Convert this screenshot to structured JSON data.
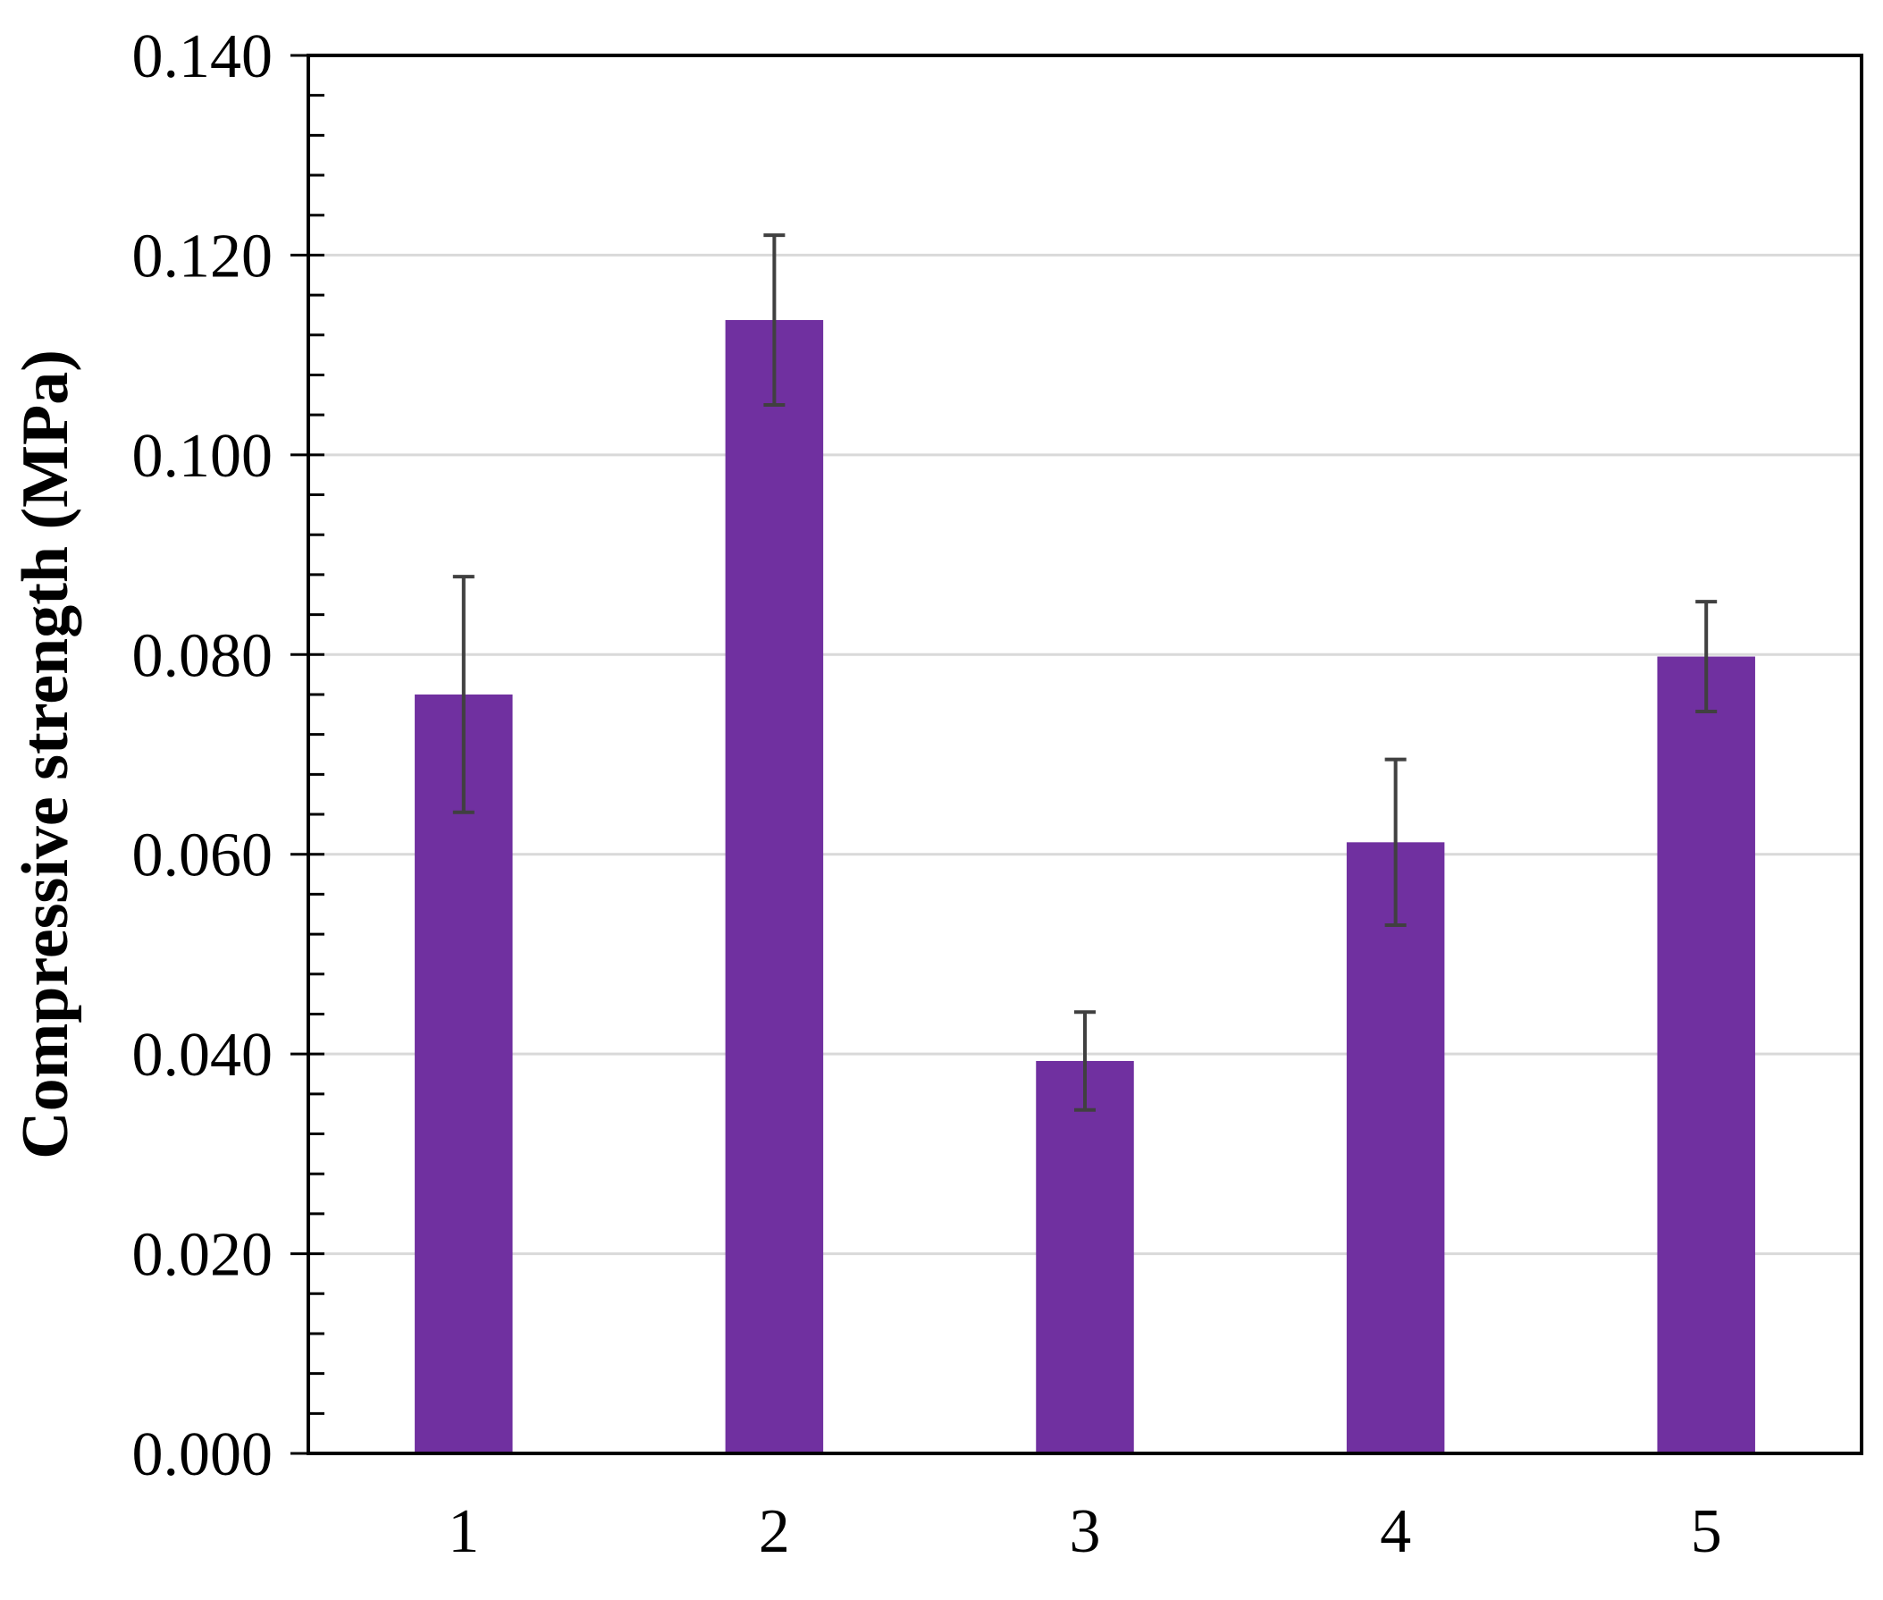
{
  "chart_data": {
    "type": "bar",
    "categories": [
      "1",
      "2",
      "3",
      "4",
      "5"
    ],
    "values": [
      0.076,
      0.1135,
      0.0393,
      0.0612,
      0.0798
    ],
    "errors": [
      0.0118,
      0.0085,
      0.0049,
      0.0083,
      0.0055
    ],
    "title": "",
    "xlabel": "",
    "ylabel": "Compressive strength (MPa)",
    "ylim": [
      0,
      0.14
    ],
    "yticks": [
      "0.000",
      "0.020",
      "0.040",
      "0.060",
      "0.080",
      "0.100",
      "0.120",
      "0.140"
    ],
    "grid": true,
    "legend": "none",
    "colors": {
      "bar": "#7030a0",
      "error_bar": "#404040",
      "grid": "#d9d9d9",
      "axis": "#000000"
    }
  }
}
